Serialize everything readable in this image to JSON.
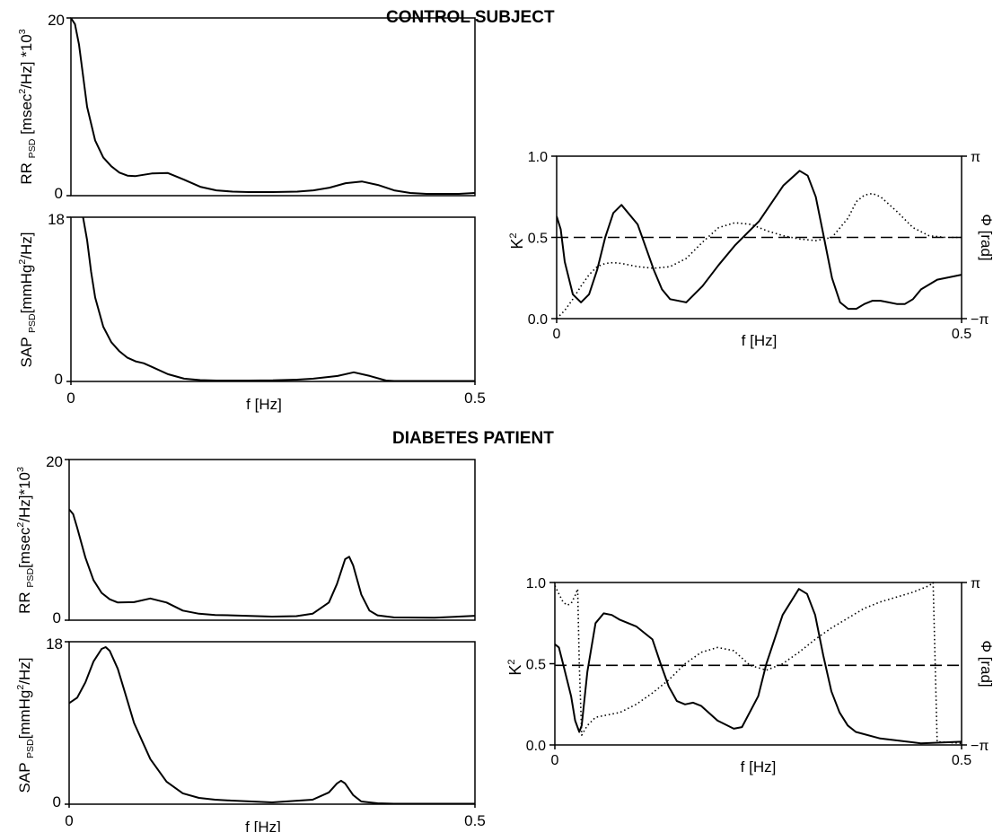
{
  "sections": {
    "control_title": "CONTROL SUBJECT",
    "diabetes_title": "DIABETES PATIENT"
  },
  "labels": {
    "rr_main": "RR",
    "rr_sub": "PSD",
    "rr_unit_a": "[msec",
    "rr_unit_sup": "2",
    "rr_unit_b": "/Hz] *10",
    "rr_unit_b2": "/Hz]*10",
    "rr_unit_exp": "3",
    "sap_main": "SAP",
    "sap_sub": "PSD",
    "sap_unit_a": "[mmHg",
    "sap_unit_sup": "2",
    "sap_unit_b": "/Hz]",
    "k_main": "K",
    "k_sup": "2",
    "phi_label": "Φ [rad]",
    "f_label": "f [Hz]"
  },
  "chart_data": [
    {
      "id": "control-rr-psd",
      "type": "line",
      "ylabel": "RR PSD [msec²/Hz] *10³",
      "xlim": [
        0,
        0.5
      ],
      "ylim": [
        0,
        20
      ],
      "yticks": [
        "20",
        "0"
      ],
      "xticks": [],
      "series": [
        {
          "x": [
            0,
            0.005,
            0.01,
            0.015,
            0.02,
            0.03,
            0.04,
            0.05,
            0.06,
            0.07,
            0.08,
            0.1,
            0.12,
            0.14,
            0.16,
            0.18,
            0.2,
            0.22,
            0.25,
            0.28,
            0.3,
            0.32,
            0.34,
            0.36,
            0.38,
            0.4,
            0.42,
            0.44,
            0.46,
            0.48,
            0.5
          ],
          "y": [
            20,
            19.3,
            17,
            13.5,
            10,
            6.2,
            4.3,
            3.3,
            2.6,
            2.25,
            2.2,
            2.5,
            2.55,
            1.8,
            1.0,
            0.6,
            0.45,
            0.4,
            0.4,
            0.45,
            0.6,
            0.9,
            1.4,
            1.6,
            1.2,
            0.6,
            0.3,
            0.2,
            0.2,
            0.2,
            0.3
          ]
        }
      ]
    },
    {
      "id": "control-sap-psd",
      "type": "line",
      "ylabel": "SAP PSD [mmHg²/Hz]",
      "xlim": [
        0,
        0.5
      ],
      "ylim": [
        0,
        18
      ],
      "yticks": [
        "18",
        "0"
      ],
      "xticks": [
        "0",
        "0.5"
      ],
      "xlabel": "f [Hz]",
      "series": [
        {
          "x": [
            0.015,
            0.02,
            0.025,
            0.03,
            0.04,
            0.05,
            0.06,
            0.07,
            0.08,
            0.09,
            0.1,
            0.12,
            0.14,
            0.16,
            0.18,
            0.2,
            0.22,
            0.25,
            0.28,
            0.3,
            0.33,
            0.35,
            0.37,
            0.39,
            0.4,
            0.42,
            0.45,
            0.48,
            0.5
          ],
          "y": [
            18,
            15.5,
            12,
            9.2,
            6,
            4.3,
            3.3,
            2.6,
            2.2,
            2.0,
            1.6,
            0.8,
            0.3,
            0.15,
            0.1,
            0.1,
            0.1,
            0.12,
            0.2,
            0.3,
            0.6,
            1.0,
            0.6,
            0.1,
            0.05,
            0.05,
            0.05,
            0.05,
            0.05
          ]
        }
      ]
    },
    {
      "id": "control-coherence",
      "type": "line",
      "ylabel": "K²",
      "y2label": "Φ [rad]",
      "xlabel": "f [Hz]",
      "xlim": [
        0,
        0.5
      ],
      "ylim": [
        0,
        1
      ],
      "xticks": [
        "0",
        "0.5"
      ],
      "yticks": [
        "1.0",
        "0.5",
        "0.0"
      ],
      "y2ticks": [
        "π",
        "−π"
      ],
      "series": [
        {
          "name": "K²",
          "style": "solid",
          "x": [
            0,
            0.005,
            0.01,
            0.02,
            0.03,
            0.04,
            0.05,
            0.06,
            0.07,
            0.08,
            0.1,
            0.12,
            0.13,
            0.14,
            0.16,
            0.18,
            0.2,
            0.22,
            0.25,
            0.28,
            0.3,
            0.31,
            0.32,
            0.33,
            0.34,
            0.35,
            0.36,
            0.37,
            0.38,
            0.39,
            0.4,
            0.41,
            0.42,
            0.43,
            0.44,
            0.45,
            0.47,
            0.5
          ],
          "y": [
            0.63,
            0.55,
            0.35,
            0.15,
            0.1,
            0.15,
            0.3,
            0.5,
            0.65,
            0.7,
            0.58,
            0.3,
            0.18,
            0.12,
            0.1,
            0.2,
            0.33,
            0.45,
            0.6,
            0.82,
            0.91,
            0.88,
            0.75,
            0.5,
            0.25,
            0.1,
            0.06,
            0.06,
            0.09,
            0.11,
            0.11,
            0.1,
            0.09,
            0.09,
            0.12,
            0.18,
            0.24,
            0.27
          ]
        },
        {
          "name": "Φ",
          "style": "dotted",
          "x": [
            0,
            0.01,
            0.02,
            0.03,
            0.04,
            0.05,
            0.06,
            0.07,
            0.08,
            0.1,
            0.12,
            0.14,
            0.16,
            0.18,
            0.2,
            0.22,
            0.24,
            0.26,
            0.28,
            0.3,
            0.32,
            0.34,
            0.36,
            0.37,
            0.38,
            0.39,
            0.4,
            0.42,
            0.44,
            0.46,
            0.48,
            0.5
          ],
          "y": [
            0.0,
            0.05,
            0.12,
            0.2,
            0.27,
            0.32,
            0.34,
            0.345,
            0.34,
            0.32,
            0.31,
            0.32,
            0.37,
            0.47,
            0.56,
            0.59,
            0.58,
            0.54,
            0.51,
            0.49,
            0.48,
            0.5,
            0.62,
            0.72,
            0.76,
            0.77,
            0.75,
            0.66,
            0.56,
            0.51,
            0.5,
            0.5
          ]
        },
        {
          "name": "0.5 threshold",
          "style": "dashed",
          "x": [
            0,
            0.5
          ],
          "y": [
            0.5,
            0.5
          ]
        }
      ]
    },
    {
      "id": "diabetes-rr-psd",
      "type": "line",
      "ylabel": "RR PSD [msec²/Hz]*10³",
      "xlim": [
        0,
        0.5
      ],
      "ylim": [
        0,
        20
      ],
      "yticks": [
        "20",
        "0"
      ],
      "xticks": [],
      "series": [
        {
          "x": [
            0,
            0.005,
            0.01,
            0.02,
            0.03,
            0.04,
            0.05,
            0.06,
            0.08,
            0.1,
            0.12,
            0.14,
            0.16,
            0.18,
            0.2,
            0.25,
            0.28,
            0.3,
            0.32,
            0.33,
            0.34,
            0.345,
            0.35,
            0.36,
            0.37,
            0.38,
            0.4,
            0.45,
            0.5
          ],
          "y": [
            13.8,
            13.2,
            11.5,
            7.8,
            5.0,
            3.4,
            2.6,
            2.2,
            2.25,
            2.7,
            2.2,
            1.2,
            0.8,
            0.65,
            0.6,
            0.45,
            0.5,
            0.8,
            2.2,
            4.5,
            7.6,
            7.9,
            6.8,
            3.2,
            1.2,
            0.6,
            0.35,
            0.3,
            0.55
          ]
        }
      ]
    },
    {
      "id": "diabetes-sap-psd",
      "type": "line",
      "ylabel": "SAP PSD [mmHg²/Hz]",
      "xlabel": "f [Hz]",
      "xlim": [
        0,
        0.5
      ],
      "ylim": [
        0,
        18
      ],
      "yticks": [
        "18",
        "0"
      ],
      "xticks": [
        "0",
        "0.5"
      ],
      "series": [
        {
          "x": [
            0,
            0.01,
            0.02,
            0.03,
            0.04,
            0.045,
            0.05,
            0.06,
            0.07,
            0.08,
            0.1,
            0.12,
            0.14,
            0.16,
            0.18,
            0.2,
            0.25,
            0.3,
            0.32,
            0.33,
            0.335,
            0.34,
            0.35,
            0.36,
            0.38,
            0.4,
            0.45,
            0.5
          ],
          "y": [
            11.2,
            11.8,
            13.5,
            15.8,
            17.2,
            17.4,
            17.0,
            15.0,
            12.0,
            9.0,
            5.0,
            2.5,
            1.2,
            0.7,
            0.5,
            0.4,
            0.2,
            0.5,
            1.3,
            2.3,
            2.6,
            2.3,
            1.0,
            0.3,
            0.1,
            0.05,
            0.05,
            0.05
          ]
        }
      ]
    },
    {
      "id": "diabetes-coherence",
      "type": "line",
      "ylabel": "K²",
      "y2label": "Φ [rad]",
      "xlabel": "f [Hz]",
      "xlim": [
        0,
        0.5
      ],
      "ylim": [
        0,
        1
      ],
      "xticks": [
        "0",
        "0.5"
      ],
      "yticks": [
        "1.0",
        "0.5",
        "0.0"
      ],
      "y2ticks": [
        "π",
        "−π"
      ],
      "series": [
        {
          "name": "K²",
          "style": "solid",
          "x": [
            0,
            0.005,
            0.01,
            0.02,
            0.025,
            0.03,
            0.033,
            0.04,
            0.05,
            0.06,
            0.07,
            0.08,
            0.1,
            0.12,
            0.13,
            0.14,
            0.15,
            0.16,
            0.17,
            0.18,
            0.2,
            0.22,
            0.23,
            0.25,
            0.26,
            0.28,
            0.3,
            0.31,
            0.32,
            0.33,
            0.34,
            0.35,
            0.36,
            0.37,
            0.4,
            0.45,
            0.5
          ],
          "y": [
            0.62,
            0.6,
            0.5,
            0.3,
            0.15,
            0.08,
            0.12,
            0.45,
            0.75,
            0.81,
            0.8,
            0.77,
            0.73,
            0.65,
            0.5,
            0.36,
            0.27,
            0.25,
            0.26,
            0.24,
            0.15,
            0.1,
            0.11,
            0.3,
            0.5,
            0.8,
            0.96,
            0.93,
            0.8,
            0.55,
            0.33,
            0.2,
            0.12,
            0.08,
            0.04,
            0.01,
            0.02
          ]
        },
        {
          "name": "Φ",
          "style": "dotted",
          "x": [
            0,
            0.005,
            0.01,
            0.015,
            0.02,
            0.025,
            0.028,
            0.03,
            0.033,
            0.04,
            0.05,
            0.06,
            0.08,
            0.1,
            0.12,
            0.14,
            0.16,
            0.18,
            0.2,
            0.22,
            0.24,
            0.26,
            0.28,
            0.3,
            0.32,
            0.34,
            0.36,
            0.38,
            0.4,
            0.42,
            0.44,
            0.46,
            0.465,
            0.47,
            0.5
          ],
          "y": [
            0.98,
            0.93,
            0.88,
            0.86,
            0.87,
            0.92,
            0.96,
            0.5,
            0.06,
            0.12,
            0.17,
            0.18,
            0.2,
            0.25,
            0.32,
            0.4,
            0.5,
            0.57,
            0.6,
            0.58,
            0.49,
            0.46,
            0.5,
            0.57,
            0.65,
            0.72,
            0.78,
            0.84,
            0.88,
            0.91,
            0.94,
            0.98,
            1.0,
            0.02,
            0.01
          ]
        },
        {
          "name": "0.5 threshold",
          "style": "dashed",
          "x": [
            0,
            0.5
          ],
          "y": [
            0.49,
            0.49
          ]
        }
      ]
    }
  ]
}
